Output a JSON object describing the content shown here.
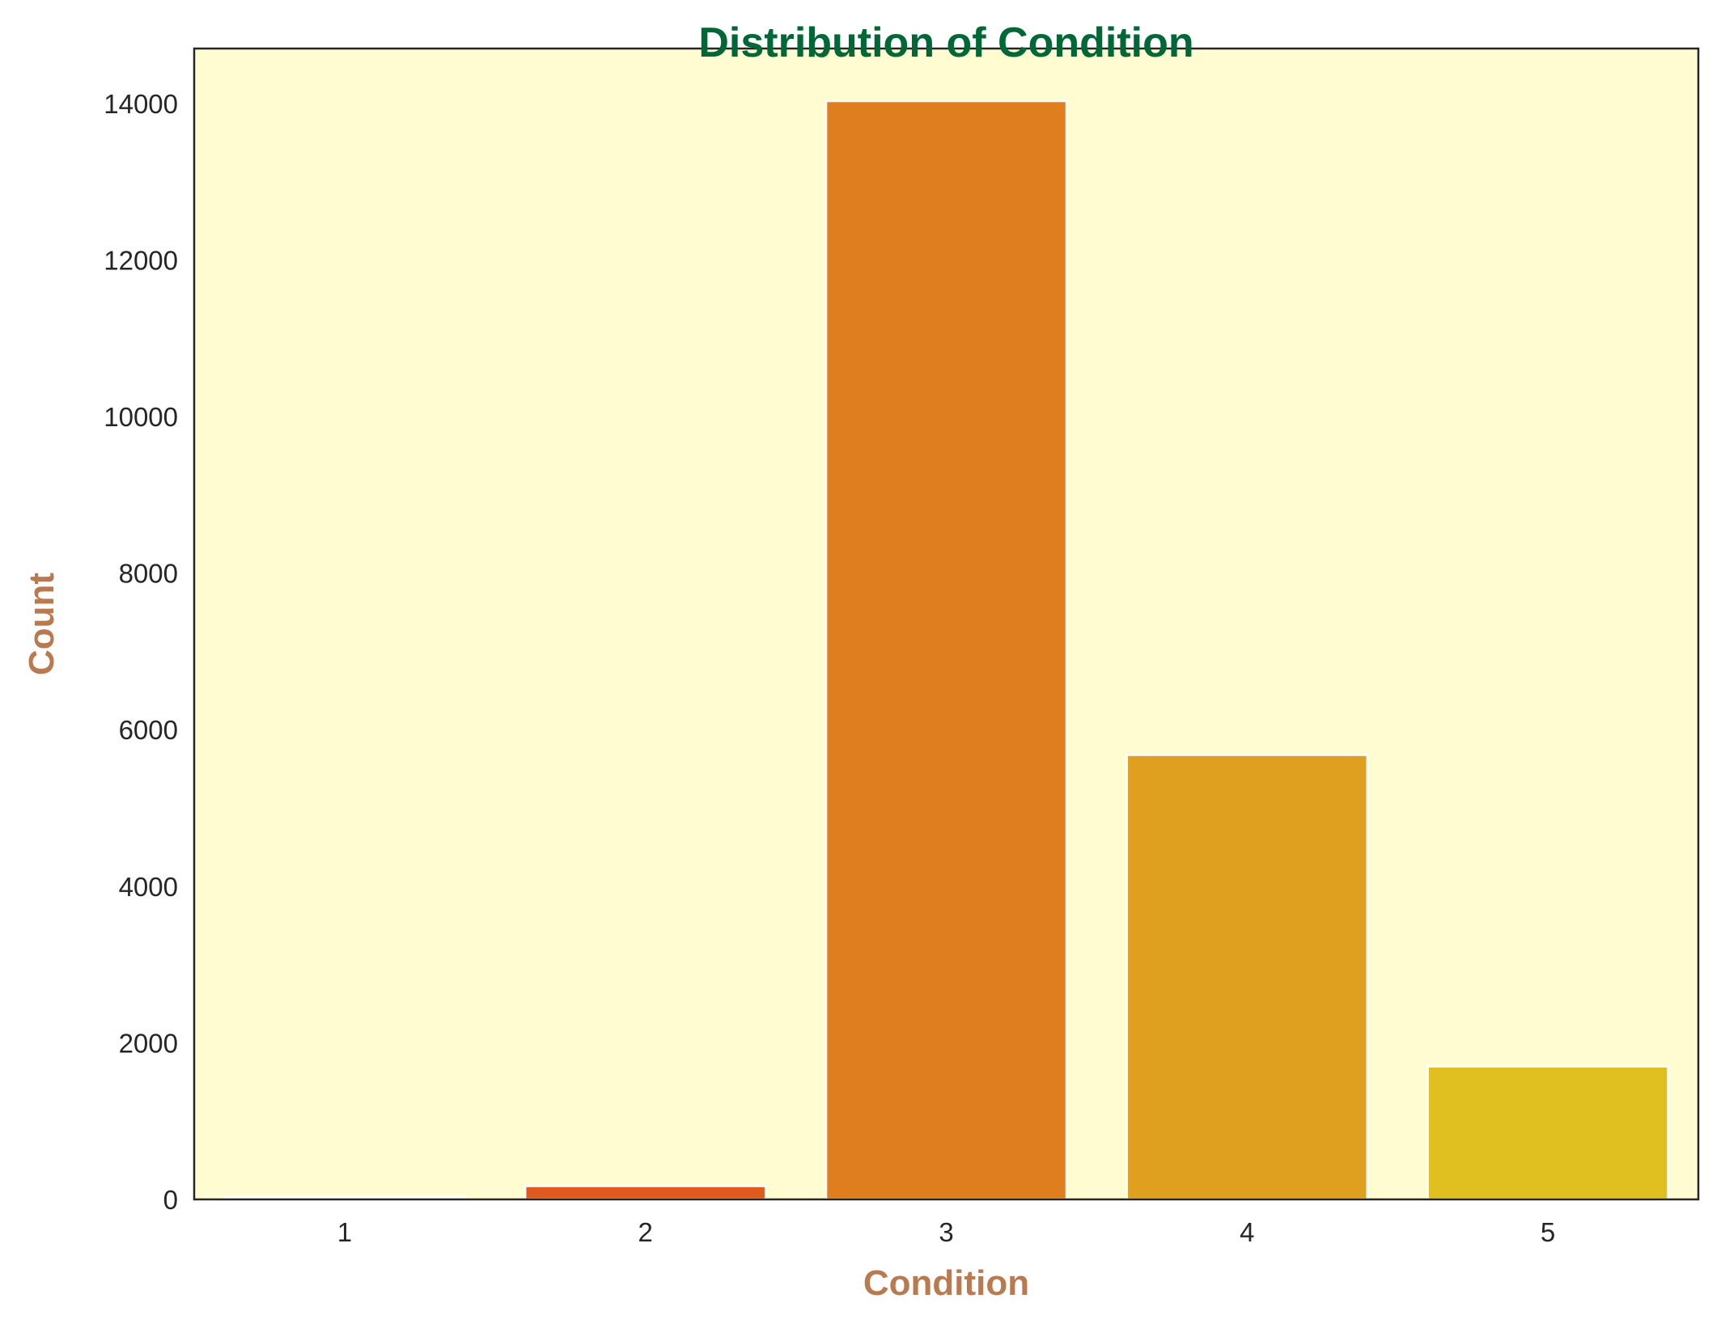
{
  "chart_data": {
    "type": "bar",
    "title": "Distribution of Condition",
    "xlabel": "Condition",
    "ylabel": "Count",
    "categories": [
      "1",
      "2",
      "3",
      "4",
      "5"
    ],
    "values": [
      30,
      172,
      14031,
      5679,
      1701
    ],
    "ylim": [
      0,
      14700
    ],
    "yticks": [
      0,
      2000,
      4000,
      6000,
      8000,
      10000,
      12000,
      14000
    ],
    "grid": false,
    "legend": "none"
  },
  "colors": {
    "background": "#ffffff",
    "plot_background": "#fffcd2",
    "title": "#006837",
    "axis_label": "#b87a4e",
    "axis_line": "#262626",
    "bar_edge": "#ffffff",
    "bars": [
      "#d9420f",
      "#e05a1f",
      "#df7e1f",
      "#dfa020",
      "#dfc020"
    ]
  }
}
